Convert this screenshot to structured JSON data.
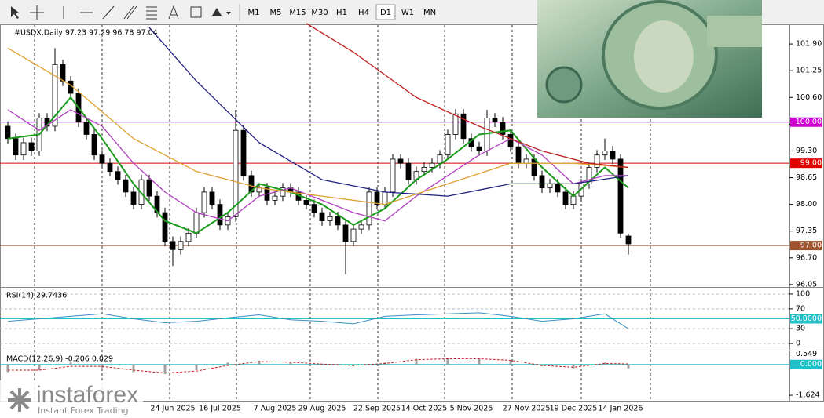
{
  "toolbar": {
    "timeframes": [
      "M1",
      "M5",
      "M15",
      "M30",
      "H1",
      "H4",
      "D1",
      "W1",
      "MN"
    ],
    "active": "D1"
  },
  "brand": {
    "name": "instaforex",
    "tagline": "Instant Forex Trading"
  },
  "chart_data": [
    {
      "type": "candlestick",
      "title": "#USDX,Daily  97.23 97.29 96.78 97.04",
      "color": "#000000",
      "categories": [
        null,
        null,
        null,
        null,
        null,
        null,
        null,
        null,
        null,
        null,
        null,
        null,
        null,
        null,
        null,
        null,
        null,
        null,
        null,
        null,
        null,
        "24 Jun 2025",
        null,
        null,
        null,
        null,
        null,
        "16 Jul 2025",
        null,
        null,
        null,
        null,
        null,
        null,
        "7 Aug 2025",
        null,
        null,
        null,
        null,
        null,
        "29 Aug 2025",
        null,
        null,
        null,
        null,
        null,
        null,
        "22 Sep 2025",
        null,
        null,
        null,
        null,
        null,
        "14 Oct 2025",
        null,
        null,
        null,
        null,
        null,
        "5 Nov 2025",
        null,
        null,
        null,
        null,
        null,
        null,
        "27 Nov 2025",
        null,
        null,
        null,
        null,
        null,
        "19 Dec 2025",
        null,
        null,
        null,
        null,
        null,
        "14 Jan 2026",
        null
      ],
      "open": [
        99.9,
        99.6,
        99.2,
        99.5,
        99.3,
        100.1,
        99.9,
        101.4,
        101.0,
        100.7,
        100.0,
        99.7,
        99.2,
        99.0,
        98.8,
        98.6,
        98.3,
        98.0,
        98.6,
        98.2,
        97.8,
        97.1,
        96.9,
        97.1,
        97.3,
        97.8,
        98.3,
        98.0,
        97.5,
        97.7,
        99.8,
        98.7,
        98.3,
        98.4,
        98.1,
        98.2,
        98.4,
        98.3,
        98.1,
        98.0,
        97.8,
        97.6,
        97.7,
        97.5,
        97.1,
        97.4,
        97.5,
        98.3,
        98.0,
        98.3,
        99.1,
        99.0,
        98.6,
        98.8,
        98.9,
        99.0,
        99.2,
        99.7,
        100.2,
        99.6,
        99.4,
        99.3,
        100.1,
        100.0,
        99.7,
        99.4,
        99.0,
        99.1,
        98.7,
        98.4,
        98.5,
        98.3,
        98.0,
        98.2,
        98.5,
        98.9,
        99.2,
        99.3,
        99.1,
        97.23
      ],
      "high": [
        100.02,
        99.72,
        99.62,
        99.62,
        100.22,
        100.22,
        101.8,
        101.52,
        101.12,
        100.82,
        100.12,
        99.82,
        99.32,
        99.12,
        98.92,
        98.72,
        98.42,
        98.72,
        98.72,
        98.32,
        97.92,
        97.22,
        97.22,
        97.42,
        97.92,
        98.42,
        98.42,
        98.12,
        97.82,
        100.3,
        99.92,
        98.82,
        98.52,
        98.52,
        98.32,
        98.52,
        98.52,
        98.42,
        98.22,
        98.12,
        97.92,
        97.82,
        97.82,
        97.62,
        97.52,
        97.62,
        98.42,
        98.42,
        98.42,
        99.22,
        99.22,
        99.12,
        98.92,
        99.02,
        99.12,
        99.32,
        99.82,
        100.32,
        100.32,
        99.72,
        99.52,
        100.3,
        100.22,
        100.12,
        99.82,
        99.52,
        99.22,
        99.22,
        98.82,
        98.62,
        98.62,
        98.42,
        98.32,
        98.62,
        99.02,
        99.32,
        99.6,
        99.42,
        99.22,
        97.29
      ],
      "low": [
        99.48,
        99.08,
        99.08,
        99.18,
        99.18,
        99.78,
        99.78,
        100.88,
        100.58,
        99.88,
        99.58,
        99.08,
        98.88,
        98.68,
        98.48,
        98.18,
        97.88,
        97.88,
        98.08,
        97.68,
        96.98,
        96.5,
        96.78,
        96.98,
        97.18,
        97.68,
        97.88,
        97.38,
        97.38,
        97.58,
        98.58,
        98.18,
        98.18,
        97.98,
        97.98,
        98.08,
        98.18,
        97.98,
        97.88,
        97.68,
        97.48,
        97.48,
        97.38,
        96.3,
        96.98,
        97.28,
        97.38,
        97.88,
        97.88,
        98.18,
        98.88,
        98.48,
        98.48,
        98.68,
        98.78,
        98.88,
        99.08,
        99.58,
        99.48,
        99.28,
        99.18,
        99.18,
        99.88,
        99.58,
        99.28,
        98.88,
        98.88,
        98.58,
        98.28,
        98.28,
        98.18,
        97.88,
        97.88,
        98.08,
        98.38,
        98.78,
        99.08,
        98.98,
        97.18,
        96.78
      ],
      "close": [
        99.6,
        99.2,
        99.5,
        99.3,
        100.1,
        99.9,
        101.4,
        101.0,
        100.7,
        100.0,
        99.7,
        99.2,
        99.0,
        98.8,
        98.6,
        98.3,
        98.0,
        98.6,
        98.2,
        97.8,
        97.1,
        96.9,
        97.1,
        97.3,
        97.8,
        98.3,
        98.0,
        97.5,
        97.7,
        99.8,
        98.7,
        98.3,
        98.4,
        98.1,
        98.2,
        98.4,
        98.3,
        98.1,
        98.0,
        97.8,
        97.6,
        97.7,
        97.5,
        97.1,
        97.4,
        97.5,
        98.3,
        98.0,
        98.3,
        99.1,
        99.0,
        98.6,
        98.8,
        98.9,
        99.0,
        99.2,
        99.7,
        100.2,
        99.6,
        99.4,
        99.3,
        100.1,
        100.0,
        99.7,
        99.4,
        99.0,
        99.1,
        98.7,
        98.4,
        98.5,
        98.3,
        98.0,
        98.2,
        98.5,
        98.9,
        99.2,
        99.3,
        99.1,
        97.3,
        97.04
      ],
      "lines": [
        {
          "color": "#1a9a1a",
          "x": [
            0,
            4,
            8,
            12,
            16,
            20,
            24,
            28,
            32,
            36,
            40,
            44,
            48,
            52,
            56,
            60,
            64,
            68,
            72,
            76,
            79
          ],
          "values": [
            99.6,
            99.7,
            100.6,
            99.6,
            98.5,
            97.6,
            97.3,
            97.8,
            98.5,
            98.3,
            98.0,
            97.5,
            97.9,
            98.6,
            99.1,
            99.7,
            99.8,
            98.9,
            98.2,
            98.9,
            98.4
          ]
        },
        {
          "color": "#b040c0",
          "x": [
            0,
            4,
            8,
            12,
            16,
            20,
            24,
            28,
            32,
            36,
            40,
            44,
            48,
            52,
            56,
            60,
            64,
            68,
            72,
            76,
            79
          ],
          "values": [
            100.3,
            99.8,
            100.3,
            99.9,
            99.0,
            98.3,
            97.8,
            97.6,
            98.2,
            98.4,
            98.1,
            97.8,
            97.6,
            98.2,
            98.7,
            99.2,
            99.6,
            99.2,
            98.5,
            98.7,
            98.7
          ]
        },
        {
          "color": "#e0a030",
          "x": [
            0,
            8,
            16,
            24,
            32,
            40,
            48,
            56,
            64,
            72,
            79
          ],
          "values": [
            101.8,
            100.9,
            99.6,
            98.8,
            98.4,
            98.2,
            98.0,
            98.5,
            99.0,
            99.0,
            98.9
          ]
        },
        {
          "color": "#202080",
          "x": [
            18,
            24,
            32,
            40,
            48,
            56,
            64,
            72,
            79
          ],
          "values": [
            102.3,
            101.0,
            99.5,
            98.6,
            98.3,
            98.2,
            98.5,
            98.5,
            98.7
          ]
        },
        {
          "color": "#c02020",
          "x": [
            38,
            44,
            52,
            60,
            68,
            74,
            79
          ],
          "values": [
            102.4,
            101.7,
            100.6,
            99.9,
            99.3,
            99.0,
            98.9
          ]
        }
      ],
      "levels": [
        {
          "value": 100,
          "label": "100.00",
          "color": "#d000d0"
        },
        {
          "value": 99,
          "label": "99.00",
          "color": "#e00000"
        },
        {
          "value": 97,
          "label": "97.00",
          "color": "#a0522d"
        }
      ],
      "ylim": [
        96.01,
        102.34
      ],
      "yticks": [
        96.05,
        {
          "value": 96.7,
          "label": "96.70"
        },
        97.35,
        {
          "value": 98,
          "label": "98.00"
        },
        98.65,
        {
          "value": 99.3,
          "label": "99.30"
        },
        99.95,
        {
          "value": 100.6,
          "label": "100.60"
        },
        101.25,
        {
          "value": 101.9,
          "label": "101.90"
        }
      ]
    },
    {
      "type": "line",
      "title": "RSI(14) 29.7436",
      "color": "#3a8fc0",
      "x": [
        0,
        4,
        8,
        12,
        16,
        20,
        24,
        28,
        32,
        36,
        40,
        44,
        48,
        52,
        56,
        60,
        64,
        68,
        72,
        76,
        79
      ],
      "values": [
        45,
        50,
        55,
        60,
        50,
        42,
        45,
        52,
        58,
        48,
        45,
        40,
        55,
        58,
        60,
        62,
        55,
        45,
        50,
        60,
        29.7436
      ],
      "levels": [
        {
          "value": 50,
          "label": "50.0000",
          "color": "#20c0c8"
        }
      ],
      "ylim": [
        -11,
        111
      ],
      "yticks": [
        0,
        30,
        70,
        100
      ]
    },
    {
      "type": "macd",
      "title": "MACD(12,26,9) -0.206 0.029",
      "series": [
        {
          "kind": "bar",
          "color": "#a0a0a0",
          "x": [
            0,
            4,
            8,
            12,
            16,
            20,
            24,
            28,
            32,
            36,
            40,
            44,
            48,
            52,
            56,
            60,
            64,
            68,
            72,
            76,
            79
          ],
          "values": [
            -0.4,
            -0.3,
            0.1,
            -0.2,
            -0.4,
            -0.5,
            -0.3,
            0.1,
            0.2,
            0.1,
            0.0,
            -0.1,
            0.1,
            0.3,
            0.3,
            0.35,
            0.2,
            -0.1,
            -0.2,
            0.1,
            -0.206
          ]
        },
        {
          "kind": "line",
          "color": "#c02020",
          "x": [
            0,
            4,
            8,
            12,
            16,
            20,
            24,
            28,
            32,
            36,
            40,
            44,
            48,
            52,
            56,
            60,
            64,
            68,
            72,
            76,
            79
          ],
          "values": [
            -0.3,
            -0.3,
            -0.1,
            -0.1,
            -0.3,
            -0.45,
            -0.35,
            -0.05,
            0.15,
            0.12,
            0.02,
            -0.05,
            0.05,
            0.25,
            0.3,
            0.3,
            0.22,
            -0.05,
            -0.15,
            0.05,
            0.029
          ]
        }
      ],
      "levels": [
        {
          "value": 0,
          "label": "0.000",
          "color": "#20c0c8"
        }
      ],
      "ylim": [
        -1.87,
        0.65
      ],
      "yticks": [
        0.549,
        -1.624
      ]
    }
  ]
}
